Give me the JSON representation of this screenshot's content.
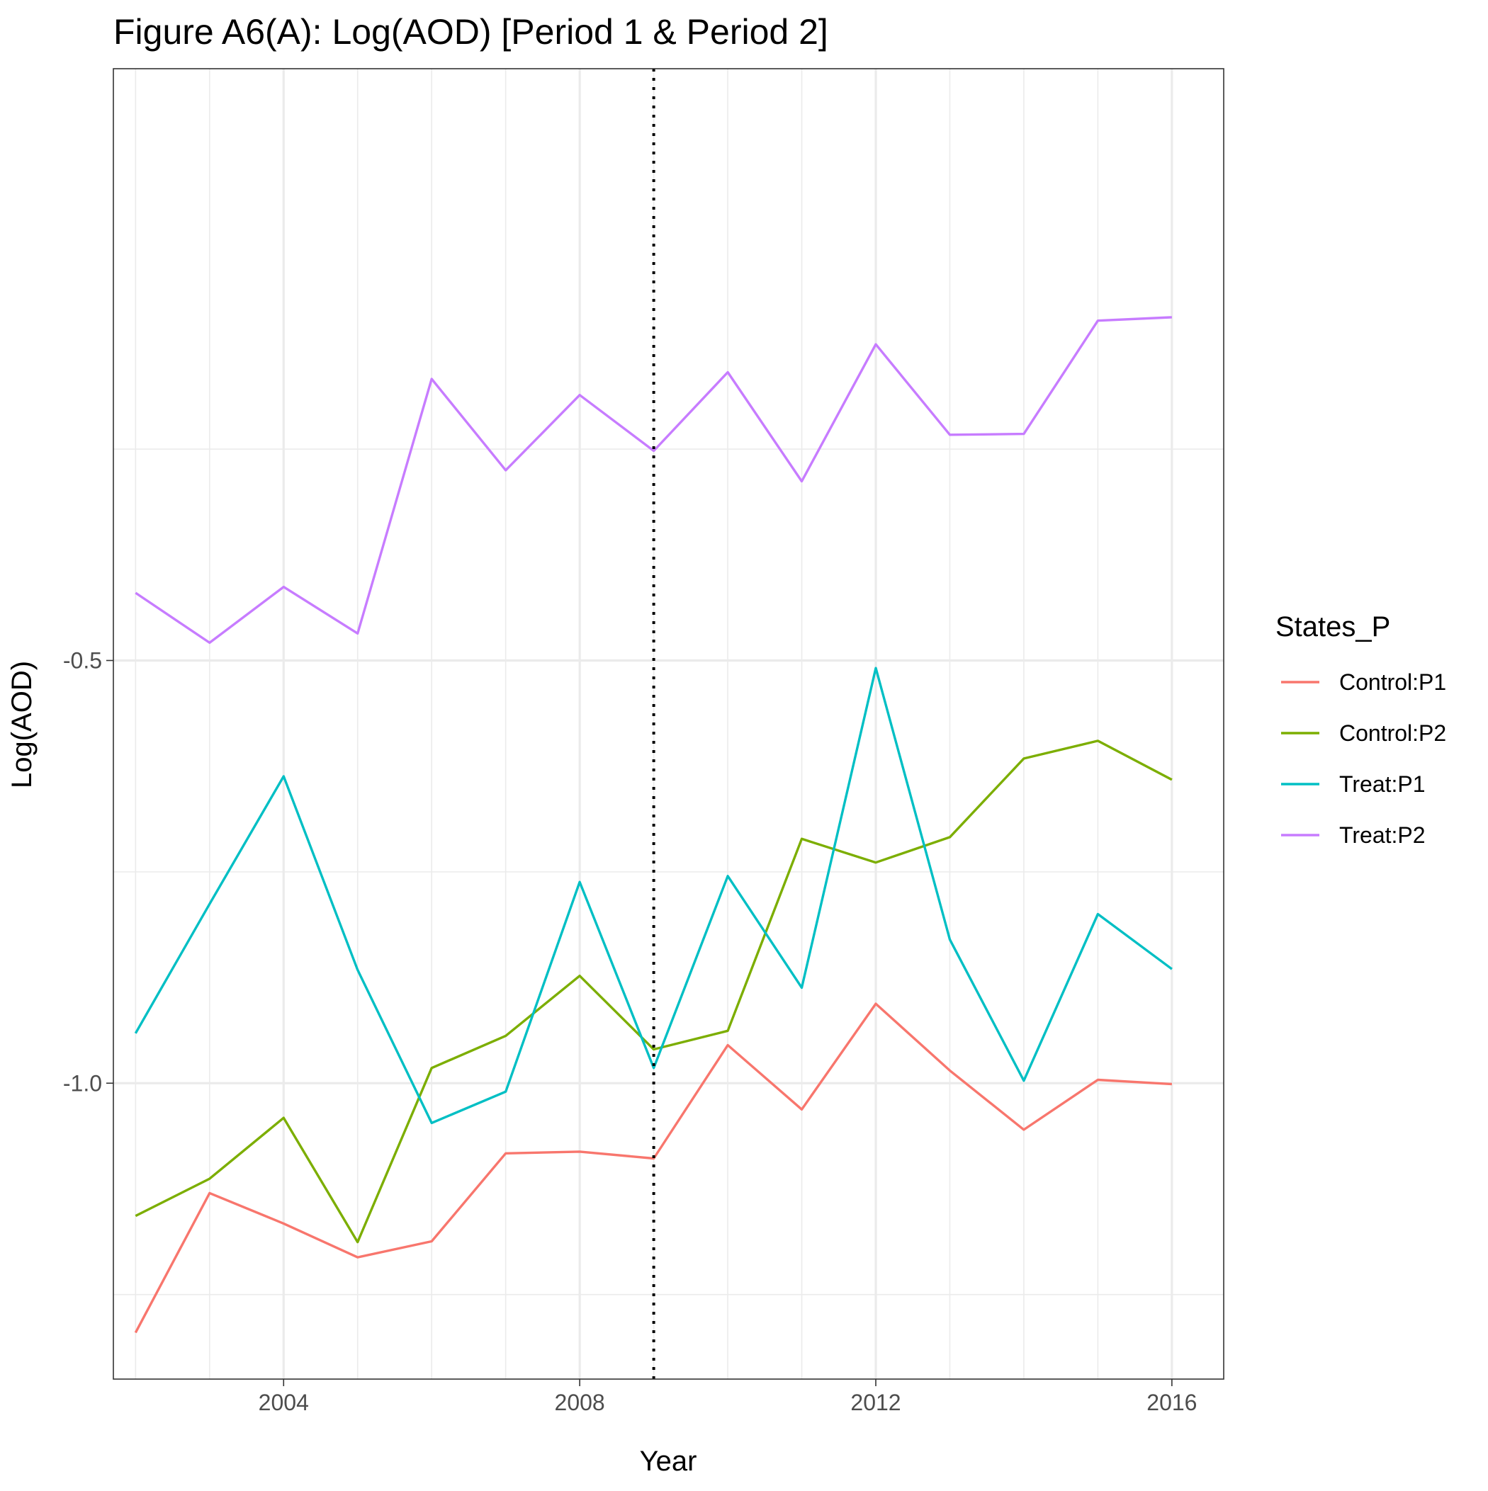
{
  "chart_data": {
    "type": "line",
    "title": "Figure A6(A): Log(AOD) [Period 1 & Period 2]",
    "xlabel": "Year",
    "ylabel": "Log(AOD)",
    "xlim": [
      2001.7,
      2016.7
    ],
    "ylim": [
      -1.35,
      0.2
    ],
    "x_ticks": [
      2004,
      2008,
      2012,
      2016
    ],
    "x_tick_labels": [
      "2004",
      "2008",
      "2012",
      "2016"
    ],
    "y_ticks": [
      -0.5,
      -1.0
    ],
    "y_tick_labels": [
      "-0.5",
      "-1.0"
    ],
    "y_minor_gridlines": [
      -0.25,
      -0.75,
      -1.25
    ],
    "grid": true,
    "reference_line": {
      "x": 2009,
      "style": "dotted",
      "color": "#000000"
    },
    "legend": {
      "title": "States_P",
      "position": "right"
    },
    "x": [
      2002,
      2003,
      2004,
      2005,
      2006,
      2007,
      2008,
      2009,
      2010,
      2011,
      2012,
      2013,
      2014,
      2015,
      2016
    ],
    "series": [
      {
        "name": "Control:P1",
        "color": "#F8766D",
        "values": [
          -1.295,
          -1.13,
          -1.166,
          -1.206,
          -1.187,
          -1.083,
          -1.081,
          -1.089,
          -0.955,
          -1.031,
          -0.906,
          -0.985,
          -1.055,
          -0.996,
          -1.001
        ]
      },
      {
        "name": "Control:P2",
        "color": "#7CAE00",
        "values": [
          -1.157,
          -1.113,
          -1.041,
          -1.188,
          -0.982,
          -0.944,
          -0.873,
          -0.96,
          -0.938,
          -0.711,
          -0.739,
          -0.709,
          -0.616,
          -0.595,
          -0.641
        ]
      },
      {
        "name": "Treat:P1",
        "color": "#00BFC4",
        "values": [
          -0.941,
          -0.788,
          -0.637,
          -0.866,
          -1.047,
          -1.01,
          -0.762,
          -0.982,
          -0.755,
          -0.887,
          -0.509,
          -0.83,
          -0.997,
          -0.8,
          -0.865
        ]
      },
      {
        "name": "Treat:P2",
        "color": "#C77CFF",
        "values": [
          -0.42,
          -0.479,
          -0.413,
          -0.468,
          -0.167,
          -0.275,
          -0.186,
          -0.252,
          -0.159,
          -0.288,
          -0.126,
          -0.233,
          -0.232,
          -0.098,
          -0.094
        ]
      }
    ]
  }
}
